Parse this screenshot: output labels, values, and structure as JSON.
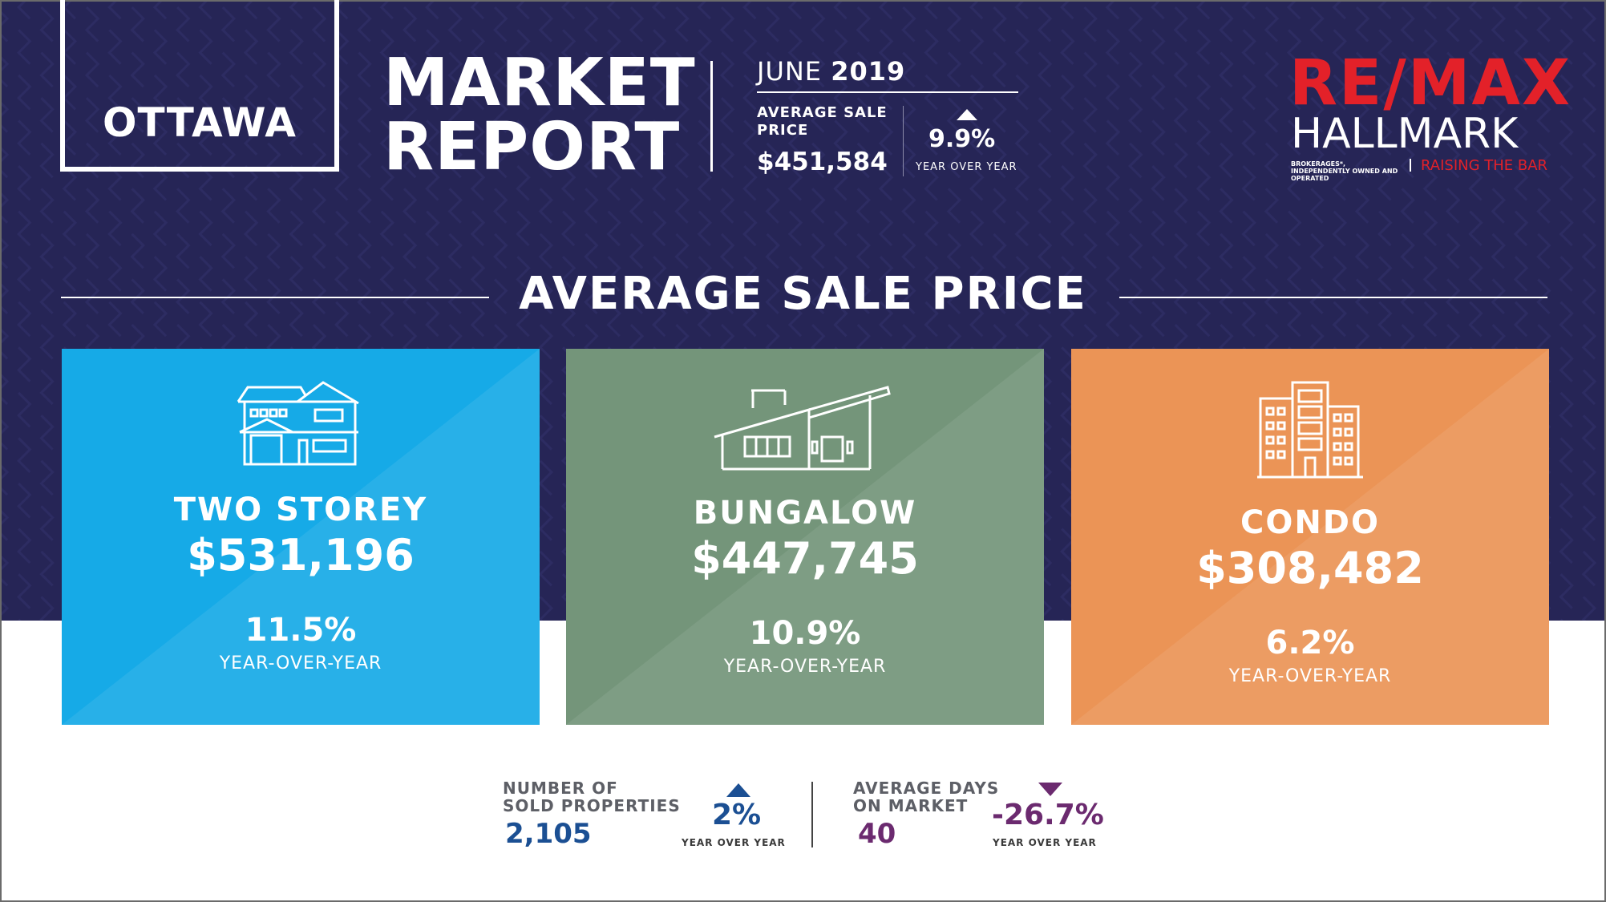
{
  "header": {
    "city": "OTTAWA",
    "title_line1": "MARKET",
    "title_line2": "REPORT",
    "month": "JUNE",
    "year": "2019",
    "avg_label": "AVERAGE SALE PRICE",
    "avg_value": "$451,584",
    "avg_change": "9.9%",
    "avg_change_caption": "YEAR OVER YEAR"
  },
  "logo": {
    "brand": "RE/MAX",
    "name": "HALLMARK",
    "fine_print": "BROKERAGES*, INDEPENDENTLY OWNED AND OPERATED",
    "tagline": "RAISING THE BAR"
  },
  "section_title": "AVERAGE SALE PRICE",
  "cards": [
    {
      "name": "TWO STOREY",
      "price": "$531,196",
      "change": "11.5%",
      "caption": "YEAR-OVER-YEAR",
      "icon": "two-storey-house-icon",
      "color": "#16aae7"
    },
    {
      "name": "BUNGALOW",
      "price": "$447,745",
      "change": "10.9%",
      "caption": "YEAR-OVER-YEAR",
      "icon": "bungalow-icon",
      "color": "#74957a"
    },
    {
      "name": "CONDO",
      "price": "$308,482",
      "change": "6.2%",
      "caption": "YEAR-OVER-YEAR",
      "icon": "condo-building-icon",
      "color": "#eb9456"
    }
  ],
  "stats": {
    "sold": {
      "label_line1": "NUMBER OF",
      "label_line2": "SOLD PROPERTIES",
      "value": "2,105",
      "change": "2%",
      "caption": "YEAR OVER YEAR",
      "direction": "up",
      "color": "#1b4f93"
    },
    "days": {
      "label_line1": "AVERAGE DAYS",
      "label_line2": "ON MARKET",
      "value": "40",
      "change": "-26.7%",
      "caption": "YEAR OVER YEAR",
      "direction": "down",
      "color": "#6b2a6f"
    }
  }
}
